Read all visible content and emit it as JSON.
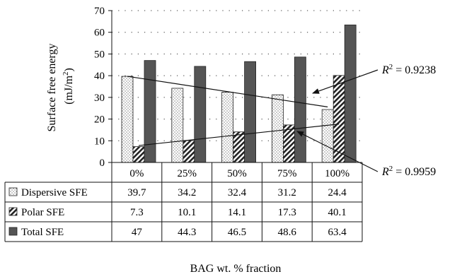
{
  "chart_data": {
    "type": "bar",
    "title": "",
    "ylabel_line1": "Surface free energy",
    "ylabel_line2_prefix": "(mJ/m",
    "ylabel_line2_sup": "2",
    "ylabel_line2_suffix": ")",
    "xlabel": "BAG wt. % fraction",
    "ylim": [
      0,
      70
    ],
    "yticks": [
      0,
      10,
      20,
      30,
      40,
      50,
      60,
      70
    ],
    "grid": true,
    "categories": [
      "0%",
      "25%",
      "50%",
      "75%",
      "100%"
    ],
    "series": [
      {
        "name": "Dispersive SFE",
        "values": [
          39.7,
          34.2,
          32.4,
          31.2,
          24.4
        ],
        "fill": "dotted",
        "color": "#ffffff"
      },
      {
        "name": "Polar SFE",
        "values": [
          7.3,
          10.1,
          14.1,
          17.3,
          40.1
        ],
        "fill": "hatched",
        "color": "#333333"
      },
      {
        "name": "Total SFE",
        "values": [
          47,
          44.3,
          46.5,
          48.6,
          63.4
        ],
        "fill": "solid",
        "color": "#555555"
      }
    ],
    "table_values": [
      [
        "39.7",
        "34.2",
        "32.4",
        "31.2",
        "24.4"
      ],
      [
        "7.3",
        "10.1",
        "14.1",
        "17.3",
        "40.1"
      ],
      [
        "47",
        "44.3",
        "46.5",
        "48.6",
        "63.4"
      ]
    ],
    "trendlines": [
      {
        "series": "Dispersive SFE",
        "x": [
          "0%",
          "100%"
        ],
        "y": [
          39.7,
          25.6
        ],
        "label_prefix": "R",
        "label_sup": "2",
        "label_value": " = 0.9238"
      },
      {
        "series": "Polar SFE",
        "x": [
          "0%",
          "100%"
        ],
        "y": [
          7.8,
          17.7
        ],
        "label_prefix": "R",
        "label_sup": "2",
        "label_value": " = 0.9959"
      }
    ]
  }
}
